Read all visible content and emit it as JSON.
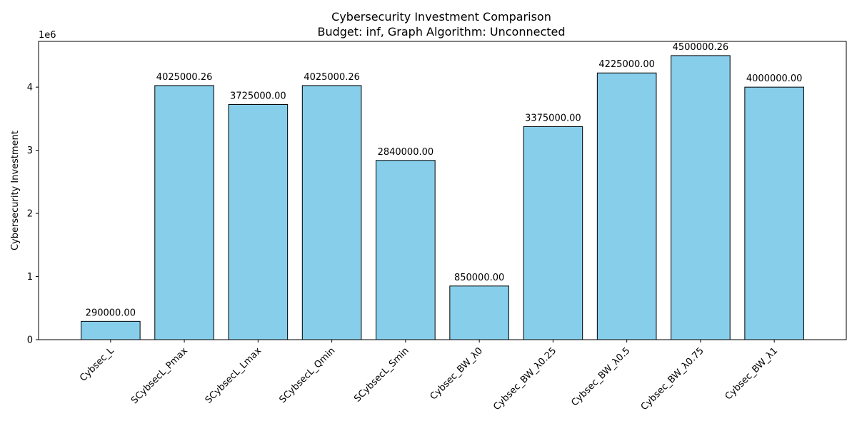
{
  "chart_data": {
    "type": "bar",
    "title": "Cybersecurity Investment Comparison",
    "subtitle": "Budget: inf, Graph Algorithm: Unconnected",
    "xlabel": "",
    "ylabel": "Cybersecurity Investment",
    "y_offset_label": "1e6",
    "y_scale": 1000000,
    "ylim": [
      0,
      4725000
    ],
    "y_ticks": [
      0,
      1000000,
      2000000,
      3000000,
      4000000
    ],
    "y_tick_labels": [
      "0",
      "1",
      "2",
      "3",
      "4"
    ],
    "grid": false,
    "legend": "none",
    "categories": [
      "Cybsec_L",
      "SCybsecL_Pmax",
      "SCybsecL_Lmax",
      "SCybsecL_Qmin",
      "SCybsecL_Smin",
      "Cybsec_BW_λ0",
      "Cybsec_BW_λ0.25",
      "Cybsec_BW_λ0.5",
      "Cybsec_BW_λ0.75",
      "Cybsec_BW_λ1"
    ],
    "values": [
      290000.0,
      4025000.26,
      3725000.0,
      4025000.26,
      2840000.0,
      850000.0,
      3375000.0,
      4225000.0,
      4500000.26,
      4000000.0
    ],
    "data_labels": [
      "290000.00",
      "4025000.26",
      "3725000.00",
      "4025000.26",
      "2840000.00",
      "850000.00",
      "3375000.00",
      "4225000.00",
      "4500000.26",
      "4000000.00"
    ],
    "colors": {
      "bar_fill": "#87ceeb",
      "bar_edge": "#000000",
      "axis": "#000000",
      "text": "#000000",
      "background": "#ffffff"
    }
  }
}
